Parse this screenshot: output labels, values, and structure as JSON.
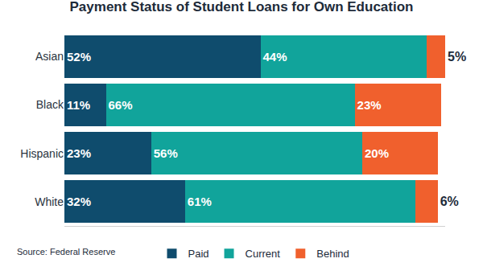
{
  "chart_data": {
    "type": "bar",
    "title": "Payment Status of Student Loans for Own Education",
    "orientation": "horizontal",
    "stacked": true,
    "data_labels": true,
    "tick_labels": "y",
    "legend": "bottom",
    "grid": false,
    "source": "Source: Federal Reserve",
    "categories": [
      "Asian",
      "Black",
      "Hispanic",
      "White"
    ],
    "xlim": [
      0,
      101
    ],
    "xticks": [],
    "series": [
      {
        "name": "Paid",
        "color": "#0f4c6d",
        "values": [
          52,
          11,
          23,
          32
        ],
        "value_labels": [
          "52%",
          "11%",
          "23%",
          "32%"
        ]
      },
      {
        "name": "Current",
        "color": "#11a49b",
        "values": [
          44,
          66,
          56,
          61
        ],
        "value_labels": [
          "44%",
          "66%",
          "56%",
          "61%"
        ]
      },
      {
        "name": "Behind",
        "color": "#f0602d",
        "values": [
          5,
          23,
          20,
          6
        ],
        "value_labels": [
          "5%",
          "23%",
          "20%",
          "6%"
        ]
      }
    ]
  }
}
